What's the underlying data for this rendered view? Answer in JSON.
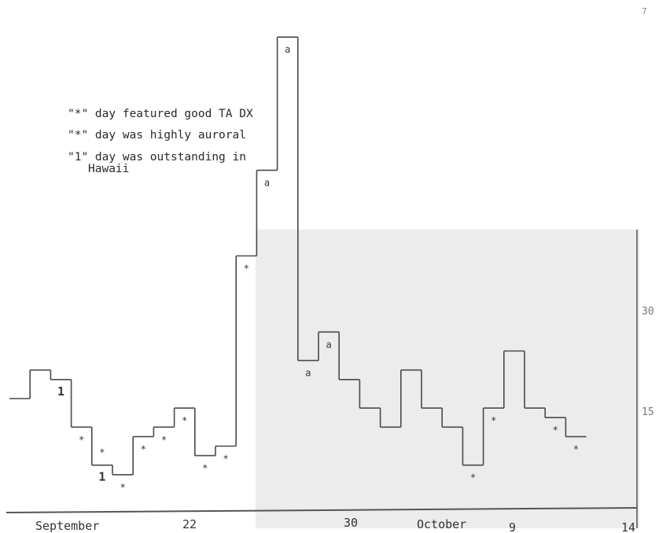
{
  "page_number": "7",
  "legend": {
    "line1": "\"*\" day featured good TA DX",
    "line2": "\"*\" day was highly auroral",
    "line3a": "\"1\" day was outstanding in",
    "line3b": "Hawaii"
  },
  "colors": {
    "ink": "#333333",
    "gray_panel": "#ececec",
    "step_line": "#4a4a4a",
    "background": "#ffffff"
  },
  "chart_data": {
    "type": "line",
    "step": true,
    "title": "",
    "xlabel": "",
    "ylabel": "",
    "x_tick_labels": [
      "September",
      "22",
      "30",
      "October",
      "9",
      "14"
    ],
    "y_tick_labels": [
      "30",
      "15"
    ],
    "ylim": [
      0,
      48
    ],
    "series": [
      {
        "steps": [
          {
            "day": "Sep 15",
            "value": 10
          },
          {
            "day": "Sep 16",
            "value": 13
          },
          {
            "day": "Sep 18",
            "value": 12,
            "marker": "1"
          },
          {
            "day": "Sep 19",
            "value": 7,
            "marker": "*"
          },
          {
            "day": "Sep 20",
            "value": 3,
            "marker": "1",
            "marker2": "*"
          },
          {
            "day": "Sep 21",
            "value": 2,
            "marker": "*"
          },
          {
            "day": "Sep 22",
            "value": 6,
            "marker": "*"
          },
          {
            "day": "Sep 23",
            "value": 7,
            "marker": "*"
          },
          {
            "day": "Sep 24",
            "value": 9,
            "marker": "*"
          },
          {
            "day": "Sep 25",
            "value": 4,
            "marker": "*"
          },
          {
            "day": "Sep 26",
            "value": 5,
            "marker": "*"
          },
          {
            "day": "Sep 27",
            "value": 25,
            "marker": "*"
          },
          {
            "day": "Sep 28",
            "value": 34,
            "marker": "a"
          },
          {
            "day": "Sep 29",
            "value": 48,
            "marker": "a"
          },
          {
            "day": "Sep 30",
            "value": 14,
            "marker": "a"
          },
          {
            "day": "Oct 1",
            "value": 17,
            "marker": "a"
          },
          {
            "day": "Oct 2",
            "value": 12
          },
          {
            "day": "Oct 3",
            "value": 9
          },
          {
            "day": "Oct 4",
            "value": 7
          },
          {
            "day": "Oct 5",
            "value": 13
          },
          {
            "day": "Oct 6",
            "value": 9
          },
          {
            "day": "Oct 7",
            "value": 7
          },
          {
            "day": "Oct 8",
            "value": 3,
            "marker": "*"
          },
          {
            "day": "Oct 9",
            "value": 9,
            "marker": "*"
          },
          {
            "day": "Oct 10",
            "value": 15
          },
          {
            "day": "Oct 11",
            "value": 9
          },
          {
            "day": "Oct 12",
            "value": 8,
            "marker": "*"
          },
          {
            "day": "Oct 13",
            "value": 6,
            "marker": "*"
          }
        ]
      }
    ]
  }
}
